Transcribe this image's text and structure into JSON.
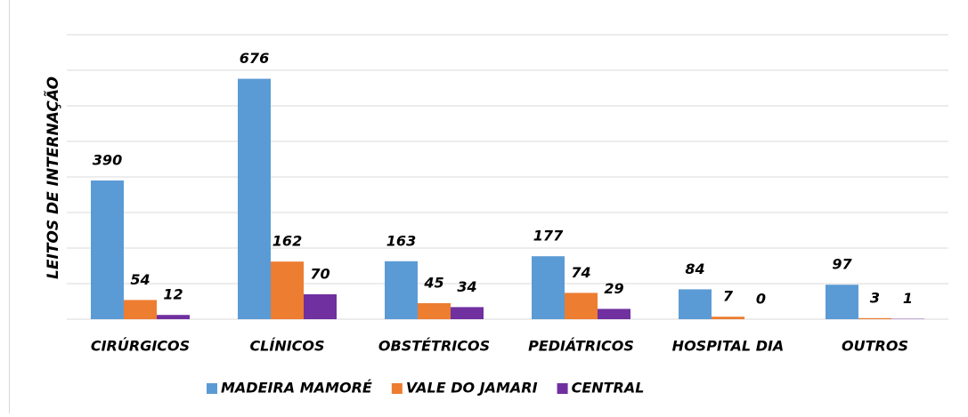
{
  "chart_data": {
    "type": "bar",
    "y_label": "LEITOS DE INTERNAÇÃO",
    "categories": [
      "CIRÚRGICOS",
      "CLÍNICOS",
      "OBSTÉTRICOS",
      "PEDIÁTRICOS",
      "HOSPITAL DIA",
      "OUTROS"
    ],
    "series": [
      {
        "name": "MADEIRA MAMORÉ",
        "color": "#5b9bd5",
        "values": [
          390,
          676,
          163,
          177,
          84,
          97
        ]
      },
      {
        "name": "VALE DO JAMARI",
        "color": "#ed7d31",
        "values": [
          54,
          162,
          45,
          74,
          7,
          3
        ]
      },
      {
        "name": "CENTRAL",
        "color": "#7030a0",
        "values": [
          12,
          70,
          34,
          29,
          0,
          1
        ]
      }
    ],
    "ylim": [
      0,
      800
    ],
    "yticks": [
      0,
      100,
      200,
      300,
      400,
      500,
      600,
      700,
      800
    ],
    "grid": true,
    "legend": "bottom"
  }
}
